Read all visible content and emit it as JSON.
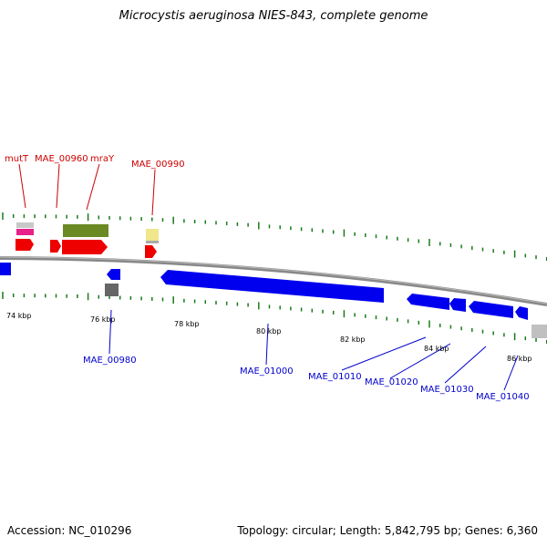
{
  "title": "Microcystis aeruginosa NIES-843, complete genome",
  "footer": {
    "accession": "Accession: NC_010296",
    "summary": "Topology: circular; Length: 5,842,795 bp; Genes: 6,360"
  },
  "colors": {
    "forward_label": "#cc0000",
    "reverse_label": "#0000cc",
    "backbone": "#888888",
    "tick": "#1a7a1a",
    "forward_gene": "#ee0000",
    "reverse_gene": "#0000ee"
  },
  "scale_labels": [
    "74 kbp",
    "76 kbp",
    "78 kbp",
    "80 kbp",
    "82 kbp",
    "84 kbp",
    "86 kbp"
  ],
  "forward_labels": [
    "mutT",
    "MAE_00960",
    "mraY",
    "MAE_00990"
  ],
  "reverse_labels": [
    "MAE_00980",
    "MAE_01000",
    "MAE_01010",
    "MAE_01020",
    "MAE_01030",
    "MAE_01040"
  ]
}
